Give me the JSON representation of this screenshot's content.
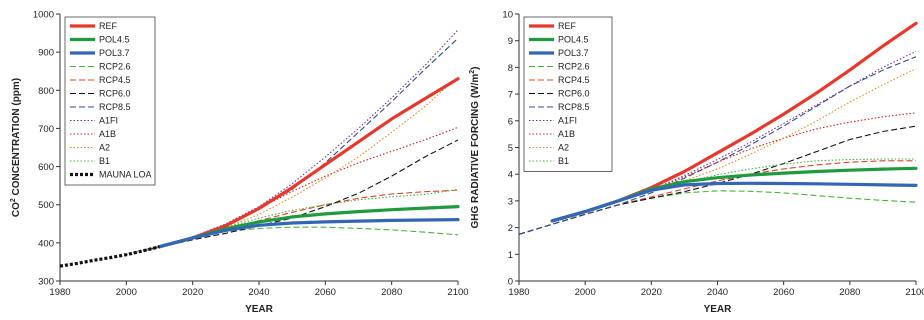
{
  "styles": {
    "REF": {
      "color": "#e8382d",
      "width": 3.2,
      "dash": ""
    },
    "POL4.5": {
      "color": "#1f9a3e",
      "width": 3.2,
      "dash": ""
    },
    "POL3.7": {
      "color": "#3566b5",
      "width": 3.2,
      "dash": ""
    },
    "RCP2.6": {
      "color": "#47b33a",
      "width": 1.1,
      "dash": "6,3"
    },
    "RCP4.5": {
      "color": "#d8442c",
      "width": 1.1,
      "dash": "6,3"
    },
    "RCP6.0": {
      "color": "#111111",
      "width": 1.1,
      "dash": "6,3"
    },
    "RCP8.5": {
      "color": "#2f4d8f",
      "width": 1.1,
      "dash": "6,3"
    },
    "A1FI": {
      "color": "#7a2f8a",
      "width": 1.1,
      "dash": "1.5,2"
    },
    "A1B": {
      "color": "#d62020",
      "width": 1.1,
      "dash": "1.5,2"
    },
    "A2": {
      "color": "#f08a1c",
      "width": 1.1,
      "dash": "1.5,2"
    },
    "B1": {
      "color": "#4caf3c",
      "width": 1.1,
      "dash": "1.5,2"
    },
    "MAUNA LOA": {
      "color": "#111111",
      "width": 3.2,
      "dash": "3,2"
    }
  },
  "chart_data": [
    {
      "type": "line",
      "xlabel": "YEAR",
      "ylabel_main": "CO",
      "ylabel_sup": "2",
      "ylabel_rest": " CONCENTRATION (ppm)",
      "xlim": [
        1980,
        2100
      ],
      "ylim": [
        300,
        1000
      ],
      "xticks": [
        1980,
        2000,
        2020,
        2040,
        2060,
        2080,
        2100
      ],
      "yticks": [
        300,
        400,
        500,
        600,
        700,
        800,
        900,
        1000
      ],
      "legend_position": "top-left",
      "legend": [
        "REF",
        "POL4.5",
        "POL3.7",
        "RCP2.6",
        "RCP4.5",
        "RCP6.0",
        "RCP8.5",
        "A1FI",
        "A1B",
        "A2",
        "B1",
        "MAUNA LOA"
      ],
      "series": [
        {
          "name": "REF",
          "x": [
            2010,
            2020,
            2030,
            2040,
            2050,
            2060,
            2070,
            2080,
            2090,
            2100
          ],
          "y": [
            390,
            413,
            445,
            490,
            545,
            605,
            665,
            725,
            778,
            830
          ]
        },
        {
          "name": "POL4.5",
          "x": [
            2010,
            2020,
            2030,
            2040,
            2050,
            2060,
            2070,
            2080,
            2090,
            2100
          ],
          "y": [
            390,
            413,
            437,
            455,
            468,
            476,
            482,
            487,
            491,
            495
          ]
        },
        {
          "name": "POL3.7",
          "x": [
            2010,
            2020,
            2030,
            2040,
            2050,
            2060,
            2070,
            2080,
            2090,
            2100
          ],
          "y": [
            390,
            413,
            433,
            446,
            452,
            455,
            457,
            459,
            460,
            461
          ]
        },
        {
          "name": "RCP2.6",
          "x": [
            2005,
            2020,
            2030,
            2040,
            2050,
            2060,
            2070,
            2080,
            2090,
            2100
          ],
          "y": [
            379,
            412,
            430,
            438,
            441,
            441,
            438,
            434,
            428,
            421
          ]
        },
        {
          "name": "RCP4.5",
          "x": [
            2005,
            2020,
            2030,
            2040,
            2050,
            2060,
            2070,
            2080,
            2090,
            2100
          ],
          "y": [
            379,
            412,
            435,
            458,
            480,
            500,
            517,
            528,
            534,
            538
          ]
        },
        {
          "name": "RCP6.0",
          "x": [
            2005,
            2020,
            2030,
            2040,
            2050,
            2060,
            2070,
            2080,
            2090,
            2100
          ],
          "y": [
            379,
            408,
            425,
            445,
            465,
            495,
            530,
            575,
            625,
            670
          ]
        },
        {
          "name": "RCP8.5",
          "x": [
            2005,
            2020,
            2030,
            2040,
            2050,
            2060,
            2070,
            2080,
            2090,
            2100
          ],
          "y": [
            379,
            415,
            448,
            490,
            540,
            610,
            690,
            770,
            855,
            936
          ]
        },
        {
          "name": "A1FI",
          "x": [
            2000,
            2020,
            2030,
            2040,
            2050,
            2060,
            2070,
            2080,
            2090,
            2100
          ],
          "y": [
            369,
            416,
            450,
            495,
            555,
            625,
            700,
            780,
            865,
            958
          ]
        },
        {
          "name": "A1B",
          "x": [
            2000,
            2020,
            2030,
            2040,
            2050,
            2060,
            2070,
            2080,
            2090,
            2100
          ],
          "y": [
            369,
            415,
            448,
            490,
            535,
            575,
            610,
            640,
            670,
            703
          ]
        },
        {
          "name": "A2",
          "x": [
            2000,
            2020,
            2030,
            2040,
            2050,
            2060,
            2070,
            2080,
            2090,
            2100
          ],
          "y": [
            369,
            414,
            440,
            475,
            520,
            570,
            625,
            690,
            757,
            836
          ]
        },
        {
          "name": "B1",
          "x": [
            2000,
            2020,
            2030,
            2040,
            2050,
            2060,
            2070,
            2080,
            2090,
            2100
          ],
          "y": [
            369,
            412,
            440,
            465,
            485,
            500,
            513,
            521,
            527,
            540
          ]
        },
        {
          "name": "MAUNA LOA",
          "x": [
            1980,
            1985,
            1990,
            1995,
            2000,
            2005,
            2010
          ],
          "y": [
            339,
            346,
            354,
            361,
            369,
            379,
            390
          ]
        }
      ]
    },
    {
      "type": "line",
      "xlabel": "YEAR",
      "ylabel_main": "GHG RADIATIVE FORCING (W/m",
      "ylabel_sup": "2",
      "ylabel_rest": ")",
      "xlim": [
        1980,
        2100
      ],
      "ylim": [
        0,
        10
      ],
      "xticks": [
        1980,
        2000,
        2020,
        2040,
        2060,
        2080,
        2100
      ],
      "yticks": [
        0,
        1,
        2,
        3,
        4,
        5,
        6,
        7,
        8,
        9,
        10
      ],
      "legend_position": "top-left",
      "legend": [
        "REF",
        "POL4.5",
        "POL3.7",
        "RCP2.6",
        "RCP4.5",
        "RCP6.0",
        "RCP8.5",
        "A1FI",
        "A1B",
        "A2",
        "B1"
      ],
      "series": [
        {
          "name": "REF",
          "x": [
            1990,
            2000,
            2010,
            2020,
            2030,
            2040,
            2050,
            2060,
            2070,
            2080,
            2090,
            2100
          ],
          "y": [
            2.25,
            2.6,
            3.0,
            3.5,
            4.1,
            4.8,
            5.5,
            6.25,
            7.05,
            7.9,
            8.8,
            9.65
          ]
        },
        {
          "name": "POL4.5",
          "x": [
            1990,
            2000,
            2010,
            2020,
            2030,
            2040,
            2050,
            2060,
            2070,
            2080,
            2090,
            2100
          ],
          "y": [
            2.25,
            2.6,
            3.0,
            3.45,
            3.72,
            3.87,
            3.97,
            4.04,
            4.1,
            4.15,
            4.19,
            4.22
          ]
        },
        {
          "name": "POL3.7",
          "x": [
            1990,
            2000,
            2010,
            2020,
            2030,
            2040,
            2050,
            2060,
            2070,
            2080,
            2090,
            2100
          ],
          "y": [
            2.25,
            2.6,
            3.0,
            3.4,
            3.6,
            3.65,
            3.66,
            3.65,
            3.64,
            3.62,
            3.6,
            3.58
          ]
        },
        {
          "name": "RCP2.6",
          "x": [
            1980,
            2000,
            2010,
            2020,
            2030,
            2040,
            2050,
            2060,
            2070,
            2080,
            2090,
            2100
          ],
          "y": [
            1.75,
            2.5,
            2.85,
            3.1,
            3.3,
            3.38,
            3.36,
            3.3,
            3.2,
            3.1,
            3.02,
            2.95
          ]
        },
        {
          "name": "RCP4.5",
          "x": [
            1980,
            2000,
            2010,
            2020,
            2030,
            2040,
            2050,
            2060,
            2070,
            2080,
            2090,
            2100
          ],
          "y": [
            1.75,
            2.5,
            2.85,
            3.15,
            3.45,
            3.75,
            4.0,
            4.2,
            4.35,
            4.45,
            4.5,
            4.5
          ]
        },
        {
          "name": "RCP6.0",
          "x": [
            1980,
            2000,
            2010,
            2020,
            2030,
            2040,
            2050,
            2060,
            2070,
            2080,
            2090,
            2100
          ],
          "y": [
            1.75,
            2.5,
            2.85,
            3.1,
            3.35,
            3.65,
            4.0,
            4.4,
            4.85,
            5.3,
            5.6,
            5.8
          ]
        },
        {
          "name": "RCP8.5",
          "x": [
            1980,
            2000,
            2010,
            2020,
            2030,
            2040,
            2050,
            2060,
            2070,
            2080,
            2090,
            2100
          ],
          "y": [
            1.75,
            2.5,
            2.85,
            3.3,
            3.85,
            4.45,
            5.1,
            5.8,
            6.55,
            7.3,
            7.9,
            8.4
          ]
        },
        {
          "name": "A1FI",
          "x": [
            1990,
            2000,
            2010,
            2020,
            2030,
            2040,
            2050,
            2060,
            2070,
            2080,
            2090,
            2100
          ],
          "y": [
            2.25,
            2.6,
            3.0,
            3.4,
            3.95,
            4.55,
            5.2,
            5.9,
            6.6,
            7.3,
            8.0,
            8.6
          ]
        },
        {
          "name": "A1B",
          "x": [
            1990,
            2000,
            2010,
            2020,
            2030,
            2040,
            2050,
            2060,
            2070,
            2080,
            2090,
            2100
          ],
          "y": [
            2.25,
            2.6,
            3.0,
            3.4,
            3.9,
            4.45,
            4.95,
            5.35,
            5.7,
            5.95,
            6.15,
            6.3
          ]
        },
        {
          "name": "A2",
          "x": [
            1990,
            2000,
            2010,
            2020,
            2030,
            2040,
            2050,
            2060,
            2070,
            2080,
            2090,
            2100
          ],
          "y": [
            2.25,
            2.6,
            3.0,
            3.35,
            3.75,
            4.2,
            4.75,
            5.35,
            6.0,
            6.7,
            7.35,
            7.95
          ]
        },
        {
          "name": "B1",
          "x": [
            1990,
            2000,
            2010,
            2020,
            2030,
            2040,
            2050,
            2060,
            2070,
            2080,
            2090,
            2100
          ],
          "y": [
            2.25,
            2.6,
            3.0,
            3.35,
            3.7,
            3.98,
            4.2,
            4.38,
            4.5,
            4.55,
            4.57,
            4.57
          ]
        }
      ]
    }
  ]
}
